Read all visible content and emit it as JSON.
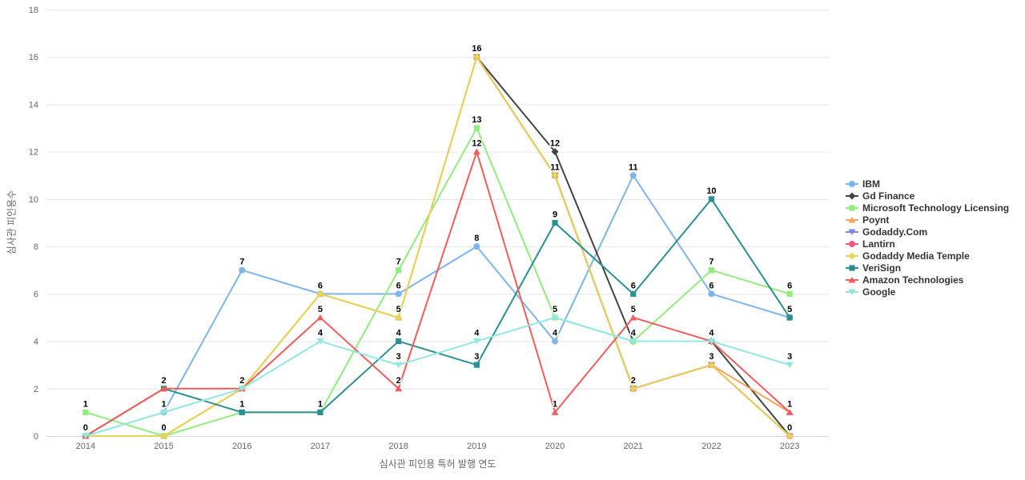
{
  "chart_data": {
    "type": "line",
    "title": "",
    "xlabel": "심사관 피인용 특허 발행 연도",
    "ylabel": "심사관 피인용수",
    "ylim": [
      0,
      18
    ],
    "yticks": [
      0,
      2,
      4,
      6,
      8,
      10,
      12,
      14,
      16,
      18
    ],
    "grid": "horizontal",
    "legend_position": "right",
    "categories": [
      "2014",
      "2015",
      "2016",
      "2017",
      "2018",
      "2019",
      "2020",
      "2021",
      "2022",
      "2023"
    ],
    "series": [
      {
        "name": "IBM",
        "color": "#7cb5ec",
        "marker": "circle",
        "values": [
          null,
          1,
          7,
          6,
          6,
          8,
          4,
          11,
          6,
          5
        ]
      },
      {
        "name": "Gd Finance",
        "color": "#434348",
        "marker": "diamond",
        "values": [
          null,
          null,
          null,
          null,
          null,
          16,
          12,
          4,
          4,
          0
        ]
      },
      {
        "name": "Microsoft Technology Licensing",
        "color": "#90ed7d",
        "marker": "square",
        "values": [
          1,
          0,
          1,
          1,
          7,
          13,
          5,
          4,
          7,
          6
        ]
      },
      {
        "name": "Poynt",
        "color": "#f7a35c",
        "marker": "triangle",
        "values": [
          null,
          0,
          2,
          6,
          5,
          16,
          11,
          2,
          3,
          1
        ]
      },
      {
        "name": "Godaddy.Com",
        "color": "#8085e9",
        "marker": "triangle-down",
        "values": [
          null,
          null,
          null,
          null,
          null,
          16,
          11,
          2,
          3,
          0
        ]
      },
      {
        "name": "Lantirn",
        "color": "#f15c80",
        "marker": "circle",
        "values": [
          null,
          null,
          null,
          null,
          null,
          16,
          11,
          2,
          3,
          0
        ]
      },
      {
        "name": "Godaddy Media Temple",
        "color": "#e4d354",
        "marker": "diamond",
        "values": [
          0,
          0,
          2,
          6,
          5,
          16,
          11,
          2,
          3,
          0
        ]
      },
      {
        "name": "VeriSign",
        "color": "#2b908f",
        "marker": "square",
        "values": [
          0,
          2,
          1,
          1,
          4,
          3,
          9,
          6,
          10,
          5
        ]
      },
      {
        "name": "Amazon Technologies",
        "color": "#f45b5b",
        "marker": "triangle",
        "values": [
          0,
          2,
          2,
          5,
          2,
          12,
          1,
          5,
          4,
          1
        ]
      },
      {
        "name": "Google",
        "color": "#91e8e1",
        "marker": "triangle-down",
        "values": [
          0,
          1,
          2,
          4,
          3,
          4,
          5,
          4,
          4,
          3
        ]
      }
    ],
    "colors_meaning": {
      "grid_color": "#e6e6e6",
      "axis_line_color": "#ccd6eb",
      "tick_label_color": "#666666",
      "axis_title_color": "#666666",
      "legend_text_color": "#333333",
      "data_label_color": "#000000"
    }
  }
}
